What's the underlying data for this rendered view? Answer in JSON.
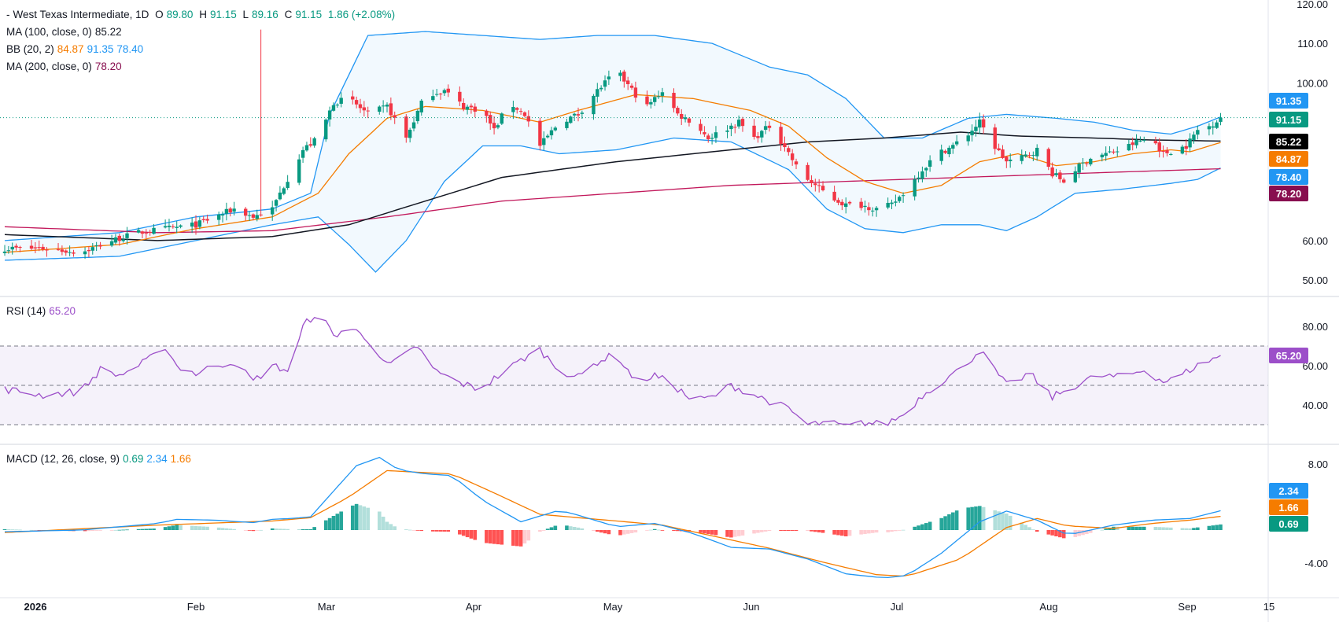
{
  "header": {
    "instrument": "West Texas Intermediate, 1D",
    "open_label": "O",
    "open": "89.80",
    "high_label": "H",
    "high": "91.15",
    "low_label": "L",
    "low": "89.16",
    "close_label": "C",
    "close": "91.15",
    "change": "1.86 (+2.08%)"
  },
  "indicators": {
    "ma100": {
      "label": "MA (100, close, 0)",
      "value": "85.22",
      "color": "#000000"
    },
    "bb": {
      "label": "BB (20, 2)",
      "basis": "84.87",
      "upper": "91.35",
      "lower": "78.40",
      "basis_color": "#f57c00",
      "band_color": "#2196f3"
    },
    "ma200": {
      "label": "MA (200, close, 0)",
      "value": "78.20",
      "color": "#880e4f"
    },
    "rsi": {
      "label": "RSI (14)",
      "value": "65.20",
      "color": "#9c4fc9"
    },
    "macd": {
      "label": "MACD (12, 26, close, 9)",
      "hist": "0.69",
      "macd": "2.34",
      "signal": "1.66"
    }
  },
  "colors": {
    "up": "#089981",
    "down": "#f23645",
    "hist_up_strong": "#26a69a",
    "hist_up_weak": "#b2dfdb",
    "hist_down_strong": "#ff5252",
    "hist_down_weak": "#ffcdd2"
  },
  "chart_data": [
    {
      "type": "candlestick",
      "title": "West Texas Intermediate, 1D",
      "y_ticks": [
        "120.00",
        "110.00",
        "100.00",
        "60.00",
        "50.00"
      ],
      "ylim": [
        45,
        120
      ],
      "x_ticks": [
        "2026",
        "Feb",
        "Mar",
        "Apr",
        "May",
        "Jun",
        "Jul",
        "Aug",
        "Sep",
        "15"
      ],
      "last_price_labels": [
        {
          "text": "91.35",
          "value": 91.35,
          "color": "#2196f3"
        },
        {
          "text": "91.15",
          "value": 91.15,
          "color": "#089981"
        },
        {
          "text": "85.22",
          "value": 85.22,
          "color": "#000000"
        },
        {
          "text": "84.87",
          "value": 84.87,
          "color": "#f57c00"
        },
        {
          "text": "78.40",
          "value": 78.4,
          "color": "#2196f3"
        },
        {
          "text": "78.20",
          "value": 78.2,
          "color": "#880e4f"
        }
      ],
      "close_anchors": [
        [
          0,
          58
        ],
        [
          10,
          58
        ],
        [
          20,
          57
        ],
        [
          28,
          60
        ],
        [
          35,
          62
        ],
        [
          42,
          63
        ],
        [
          50,
          64
        ],
        [
          55,
          66
        ],
        [
          60,
          68
        ],
        [
          65,
          66
        ],
        [
          70,
          68
        ],
        [
          72,
          72
        ],
        [
          78,
          83
        ],
        [
          82,
          86
        ],
        [
          86,
          95
        ],
        [
          90,
          96
        ],
        [
          95,
          92
        ],
        [
          100,
          94
        ],
        [
          105,
          86
        ],
        [
          110,
          97
        ],
        [
          115,
          98
        ],
        [
          120,
          94
        ],
        [
          125,
          93
        ],
        [
          128,
          88
        ],
        [
          132,
          95
        ],
        [
          136,
          92
        ],
        [
          140,
          84
        ],
        [
          145,
          90
        ],
        [
          150,
          92
        ],
        [
          155,
          98
        ],
        [
          160,
          103
        ],
        [
          165,
          97
        ],
        [
          168,
          94
        ],
        [
          172,
          98
        ],
        [
          176,
          92
        ],
        [
          180,
          90
        ],
        [
          184,
          86
        ],
        [
          188,
          88
        ],
        [
          192,
          90
        ],
        [
          196,
          86
        ],
        [
          200,
          89
        ],
        [
          204,
          84
        ],
        [
          208,
          77
        ],
        [
          212,
          74
        ],
        [
          216,
          71
        ],
        [
          220,
          69
        ],
        [
          224,
          69
        ],
        [
          228,
          68
        ],
        [
          232,
          69
        ],
        [
          236,
          73
        ],
        [
          240,
          78
        ],
        [
          244,
          82
        ],
        [
          248,
          84
        ],
        [
          252,
          87
        ],
        [
          255,
          90
        ],
        [
          258,
          85
        ],
        [
          262,
          80
        ],
        [
          266,
          81
        ],
        [
          270,
          83
        ],
        [
          274,
          77
        ],
        [
          277,
          75
        ],
        [
          280,
          78
        ],
        [
          284,
          81
        ],
        [
          288,
          82
        ],
        [
          292,
          83
        ],
        [
          296,
          85
        ],
        [
          300,
          86
        ],
        [
          303,
          82
        ],
        [
          306,
          83
        ],
        [
          309,
          84
        ],
        [
          312,
          88
        ],
        [
          315,
          89
        ],
        [
          318,
          91.15
        ]
      ],
      "ma100_anchors": [
        [
          0,
          61.5
        ],
        [
          40,
          60
        ],
        [
          70,
          61
        ],
        [
          90,
          64
        ],
        [
          110,
          70
        ],
        [
          130,
          76
        ],
        [
          160,
          80
        ],
        [
          190,
          83
        ],
        [
          210,
          85
        ],
        [
          230,
          86
        ],
        [
          250,
          87.5
        ],
        [
          265,
          86.5
        ],
        [
          285,
          86
        ],
        [
          300,
          85.5
        ],
        [
          318,
          85.22
        ]
      ],
      "ma200_anchors": [
        [
          0,
          63.5
        ],
        [
          40,
          62
        ],
        [
          70,
          62.5
        ],
        [
          100,
          66
        ],
        [
          130,
          70
        ],
        [
          160,
          72
        ],
        [
          190,
          74
        ],
        [
          220,
          75
        ],
        [
          250,
          76
        ],
        [
          280,
          77
        ],
        [
          318,
          78.2
        ]
      ],
      "bb_basis_anchors": [
        [
          0,
          57
        ],
        [
          30,
          59
        ],
        [
          50,
          63
        ],
        [
          70,
          66
        ],
        [
          82,
          72
        ],
        [
          90,
          82
        ],
        [
          100,
          91
        ],
        [
          110,
          94
        ],
        [
          125,
          93
        ],
        [
          140,
          90
        ],
        [
          150,
          93
        ],
        [
          165,
          97
        ],
        [
          180,
          96
        ],
        [
          195,
          93
        ],
        [
          205,
          89
        ],
        [
          215,
          81
        ],
        [
          225,
          75
        ],
        [
          235,
          72
        ],
        [
          245,
          74
        ],
        [
          255,
          80
        ],
        [
          265,
          82
        ],
        [
          275,
          79
        ],
        [
          285,
          80
        ],
        [
          295,
          82
        ],
        [
          305,
          83
        ],
        [
          310,
          82.5
        ],
        [
          318,
          84.87
        ]
      ],
      "bb_upper_anchors": [
        [
          0,
          60
        ],
        [
          30,
          62
        ],
        [
          50,
          66
        ],
        [
          70,
          68
        ],
        [
          80,
          72
        ],
        [
          85,
          92
        ],
        [
          95,
          112
        ],
        [
          110,
          113
        ],
        [
          125,
          112
        ],
        [
          140,
          111
        ],
        [
          155,
          112
        ],
        [
          170,
          112
        ],
        [
          185,
          110
        ],
        [
          200,
          104
        ],
        [
          210,
          102
        ],
        [
          220,
          96
        ],
        [
          230,
          86
        ],
        [
          240,
          86
        ],
        [
          252,
          91
        ],
        [
          262,
          92
        ],
        [
          275,
          91
        ],
        [
          285,
          90
        ],
        [
          295,
          88
        ],
        [
          305,
          87
        ],
        [
          312,
          89
        ],
        [
          318,
          91.35
        ]
      ],
      "bb_lower_anchors": [
        [
          0,
          55
        ],
        [
          30,
          56
        ],
        [
          50,
          60
        ],
        [
          70,
          64
        ],
        [
          82,
          66
        ],
        [
          90,
          59
        ],
        [
          97,
          52
        ],
        [
          105,
          60
        ],
        [
          115,
          75
        ],
        [
          125,
          84
        ],
        [
          135,
          84
        ],
        [
          145,
          82
        ],
        [
          160,
          83
        ],
        [
          175,
          86
        ],
        [
          190,
          85
        ],
        [
          205,
          78
        ],
        [
          215,
          68
        ],
        [
          225,
          63
        ],
        [
          235,
          62
        ],
        [
          245,
          64
        ],
        [
          255,
          64
        ],
        [
          262,
          62.5
        ],
        [
          270,
          66
        ],
        [
          280,
          72
        ],
        [
          292,
          73
        ],
        [
          305,
          74.5
        ],
        [
          312,
          75.5
        ],
        [
          318,
          78.4
        ]
      ]
    },
    {
      "type": "line",
      "title": "RSI (14)",
      "y_ticks": [
        "80.00",
        "60.00",
        "40.00"
      ],
      "ylim": [
        20,
        95
      ],
      "bands": {
        "upper": 70,
        "middle": 50,
        "lower": 30
      },
      "last_value": 65.2,
      "anchors": [
        [
          0,
          48
        ],
        [
          10,
          45
        ],
        [
          20,
          47
        ],
        [
          25,
          58
        ],
        [
          30,
          55
        ],
        [
          35,
          60
        ],
        [
          40,
          66
        ],
        [
          42,
          70
        ],
        [
          45,
          60
        ],
        [
          50,
          56
        ],
        [
          55,
          60
        ],
        [
          60,
          62
        ],
        [
          65,
          52
        ],
        [
          70,
          60
        ],
        [
          75,
          57
        ],
        [
          78,
          80
        ],
        [
          82,
          88
        ],
        [
          86,
          75
        ],
        [
          90,
          80
        ],
        [
          93,
          76
        ],
        [
          96,
          72
        ],
        [
          100,
          60
        ],
        [
          104,
          64
        ],
        [
          108,
          70
        ],
        [
          112,
          58
        ],
        [
          118,
          52
        ],
        [
          124,
          48
        ],
        [
          130,
          56
        ],
        [
          136,
          64
        ],
        [
          140,
          68
        ],
        [
          145,
          58
        ],
        [
          150,
          54
        ],
        [
          155,
          62
        ],
        [
          160,
          66
        ],
        [
          165,
          52
        ],
        [
          170,
          55
        ],
        [
          175,
          50
        ],
        [
          180,
          42
        ],
        [
          185,
          44
        ],
        [
          190,
          50
        ],
        [
          195,
          46
        ],
        [
          200,
          42
        ],
        [
          205,
          38
        ],
        [
          210,
          30
        ],
        [
          215,
          31
        ],
        [
          220,
          29
        ],
        [
          225,
          31
        ],
        [
          230,
          30
        ],
        [
          235,
          35
        ],
        [
          240,
          45
        ],
        [
          245,
          52
        ],
        [
          250,
          58
        ],
        [
          255,
          68
        ],
        [
          258,
          60
        ],
        [
          262,
          50
        ],
        [
          268,
          56
        ],
        [
          274,
          44
        ],
        [
          280,
          50
        ],
        [
          286,
          55
        ],
        [
          292,
          54
        ],
        [
          298,
          58
        ],
        [
          303,
          52
        ],
        [
          306,
          53
        ],
        [
          310,
          58
        ],
        [
          314,
          62
        ],
        [
          318,
          65.2
        ]
      ]
    },
    {
      "type": "line+histogram",
      "title": "MACD (12, 26, close, 9)",
      "y_ticks": [
        "8.00",
        "-4.00"
      ],
      "ylim": [
        -6.5,
        9.5
      ],
      "last_labels": [
        {
          "text": "2.34",
          "value": 2.34,
          "color": "#2196f3"
        },
        {
          "text": "1.66",
          "value": 1.66,
          "color": "#f57c00"
        },
        {
          "text": "0.69",
          "value": 0.69,
          "color": "#089981"
        }
      ],
      "macd_anchors": [
        [
          0,
          -0.2
        ],
        [
          20,
          0
        ],
        [
          40,
          0.8
        ],
        [
          45,
          1.3
        ],
        [
          55,
          1.2
        ],
        [
          65,
          0.9
        ],
        [
          70,
          1.3
        ],
        [
          75,
          1.4
        ],
        [
          80,
          1.6
        ],
        [
          85,
          4.2
        ],
        [
          92,
          7.8
        ],
        [
          98,
          8.8
        ],
        [
          103,
          7.3
        ],
        [
          110,
          6.8
        ],
        [
          117,
          6.6
        ],
        [
          125,
          3.6
        ],
        [
          135,
          1.0
        ],
        [
          145,
          2.4
        ],
        [
          150,
          1.8
        ],
        [
          160,
          0.4
        ],
        [
          170,
          0.8
        ],
        [
          180,
          -0.4
        ],
        [
          190,
          -2.1
        ],
        [
          200,
          -2.3
        ],
        [
          210,
          -3.5
        ],
        [
          220,
          -5.3
        ],
        [
          230,
          -5.8
        ],
        [
          236,
          -5.5
        ],
        [
          245,
          -2.8
        ],
        [
          255,
          1.0
        ],
        [
          262,
          2.3
        ],
        [
          270,
          1.2
        ],
        [
          278,
          -0.6
        ],
        [
          290,
          0.6
        ],
        [
          300,
          1.2
        ],
        [
          310,
          1.4
        ],
        [
          318,
          2.34
        ]
      ],
      "signal_anchors": [
        [
          0,
          -0.3
        ],
        [
          40,
          0.6
        ],
        [
          70,
          1.1
        ],
        [
          80,
          1.5
        ],
        [
          90,
          4.0
        ],
        [
          100,
          7.2
        ],
        [
          108,
          7.0
        ],
        [
          117,
          6.8
        ],
        [
          128,
          4.5
        ],
        [
          140,
          1.9
        ],
        [
          150,
          1.5
        ],
        [
          160,
          1.1
        ],
        [
          172,
          0.6
        ],
        [
          185,
          -0.7
        ],
        [
          200,
          -2.2
        ],
        [
          215,
          -4.0
        ],
        [
          228,
          -5.4
        ],
        [
          236,
          -5.6
        ],
        [
          250,
          -3.5
        ],
        [
          262,
          0.3
        ],
        [
          270,
          1.4
        ],
        [
          278,
          0.5
        ],
        [
          290,
          0.2
        ],
        [
          300,
          0.8
        ],
        [
          310,
          1.2
        ],
        [
          318,
          1.66
        ]
      ]
    }
  ]
}
